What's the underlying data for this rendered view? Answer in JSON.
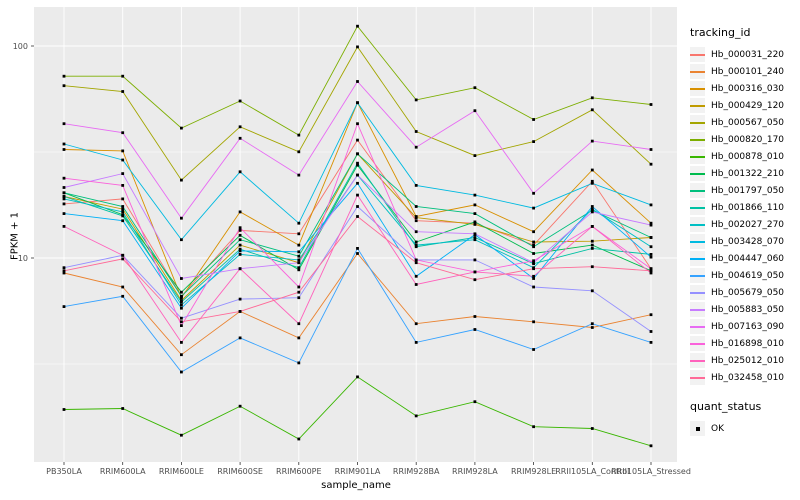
{
  "chart_data": {
    "type": "line",
    "xlabel": "sample_name",
    "ylabel": "FPKM + 1",
    "y_scale": "log10",
    "y_ticks": [
      10,
      100
    ],
    "y_minor_ticks": [
      3.1623,
      31.623
    ],
    "ylim": [
      1.1,
      150
    ],
    "grid": "on",
    "panel_bg": "#EBEBEB",
    "grid_color": "#FFFFFF",
    "tick_label_color": "#4D4D4D",
    "marker": "black-square",
    "legend_position": "right",
    "legend_title": "tracking_id",
    "legend2": {
      "title": "quant_status",
      "items": [
        "OK"
      ]
    },
    "categories": [
      "PB350LA",
      "RRIM600LA",
      "RRIM600LE",
      "RRIM600SE",
      "RRIM600PE",
      "RRIM901LA",
      "RRIM928BA",
      "RRIM928LA",
      "RRIM928LE",
      "RRII105LA_Control",
      "RRII105LA_Stressed"
    ],
    "series": [
      {
        "name": "Hb_000031_220",
        "color": "#F8766D",
        "values": [
          18.0,
          19.0,
          6.6,
          13.5,
          13.0,
          36,
          15.0,
          14.6,
          11.5,
          23,
          8.9
        ]
      },
      {
        "name": "Hb_000101_240",
        "color": "#EA8331",
        "values": [
          8.5,
          7.3,
          3.5,
          5.6,
          4.2,
          10.5,
          4.9,
          5.3,
          5.0,
          4.7,
          5.4
        ]
      },
      {
        "name": "Hb_000316_030",
        "color": "#D89000",
        "values": [
          32.5,
          32,
          6.5,
          16.5,
          11.5,
          54,
          15.7,
          17.8,
          13.3,
          26,
          14.6
        ]
      },
      {
        "name": "Hb_000429_120",
        "color": "#C09B00",
        "values": [
          19.5,
          17.0,
          6.3,
          11.5,
          9.5,
          31,
          15.5,
          14.4,
          11.9,
          12.0,
          12.5
        ]
      },
      {
        "name": "Hb_000567_050",
        "color": "#A3A500",
        "values": [
          65,
          61,
          23.3,
          41.6,
          31.7,
          99,
          39.5,
          30.4,
          35.4,
          50,
          27.7
        ]
      },
      {
        "name": "Hb_000820_170",
        "color": "#7CAE00",
        "values": [
          72,
          72,
          41,
          55,
          38,
          124,
          55.7,
          63.6,
          45,
          57,
          53
        ]
      },
      {
        "name": "Hb_000878_010",
        "color": "#39B600",
        "values": [
          1.93,
          1.95,
          1.46,
          2.0,
          1.4,
          2.75,
          1.8,
          2.1,
          1.6,
          1.57,
          1.3
        ]
      },
      {
        "name": "Hb_001322_210",
        "color": "#00BB4E",
        "values": [
          20.3,
          16.0,
          6.9,
          12.8,
          8.8,
          27.4,
          11.9,
          14.8,
          10.5,
          11.5,
          8.7
        ]
      },
      {
        "name": "Hb_001797_050",
        "color": "#00BF7D",
        "values": [
          20.3,
          17.5,
          6.6,
          12.2,
          10.2,
          31,
          17.5,
          16.2,
          11.3,
          16.8,
          12.5
        ]
      },
      {
        "name": "Hb_001866_110",
        "color": "#00C1A3",
        "values": [
          19.5,
          15.8,
          6.2,
          11.0,
          9.0,
          28,
          11.3,
          12.5,
          9.4,
          11.1,
          10.4
        ]
      },
      {
        "name": "Hb_002027_270",
        "color": "#00BFC4",
        "values": [
          19.0,
          16.5,
          6.0,
          10.4,
          9.8,
          24.6,
          11.5,
          12.2,
          9.0,
          17.0,
          11.3
        ]
      },
      {
        "name": "Hb_003428_070",
        "color": "#00BAE0",
        "values": [
          34.5,
          29,
          12.2,
          25.5,
          14.6,
          54,
          22,
          19.8,
          17.2,
          22.5,
          17.8
        ]
      },
      {
        "name": "Hb_004447_060",
        "color": "#00B0F6",
        "values": [
          16.2,
          15.0,
          5.8,
          10.8,
          10.7,
          22.5,
          8.2,
          12.9,
          8.0,
          17.5,
          10.1
        ]
      },
      {
        "name": "Hb_004619_050",
        "color": "#35A2FF",
        "values": [
          5.9,
          6.6,
          2.9,
          4.2,
          3.2,
          11.1,
          4.0,
          4.6,
          3.7,
          4.9,
          4.0
        ]
      },
      {
        "name": "Hb_005679_050",
        "color": "#9590FF",
        "values": [
          9.0,
          10.3,
          5.2,
          6.4,
          6.5,
          17.5,
          9.8,
          9.8,
          7.3,
          7.0,
          4.5
        ]
      },
      {
        "name": "Hb_005883_050",
        "color": "#C77CFF",
        "values": [
          21.5,
          25,
          8.0,
          8.9,
          9.5,
          24.6,
          13.3,
          13.0,
          9.5,
          16.5,
          14.3
        ]
      },
      {
        "name": "Hb_007163_090",
        "color": "#E76BF3",
        "values": [
          43,
          39,
          15.4,
          36.7,
          24.6,
          68,
          33.3,
          49.5,
          20.2,
          35.6,
          32.5
        ]
      },
      {
        "name": "Hb_016898_010",
        "color": "#FA62DB",
        "values": [
          23.8,
          22,
          4.8,
          13.9,
          7.3,
          43,
          9.8,
          8.6,
          9.7,
          14.1,
          8.9
        ]
      },
      {
        "name": "Hb_025012_010",
        "color": "#FF62BC",
        "values": [
          14.1,
          10.3,
          4.0,
          8.9,
          4.9,
          19.8,
          7.5,
          8.6,
          8.2,
          14.1,
          8.5
        ]
      },
      {
        "name": "Hb_032458_010",
        "color": "#FF6A98",
        "values": [
          8.7,
          9.9,
          5.0,
          5.6,
          6.9,
          15.7,
          9.5,
          7.9,
          8.9,
          9.1,
          8.7
        ]
      }
    ]
  }
}
